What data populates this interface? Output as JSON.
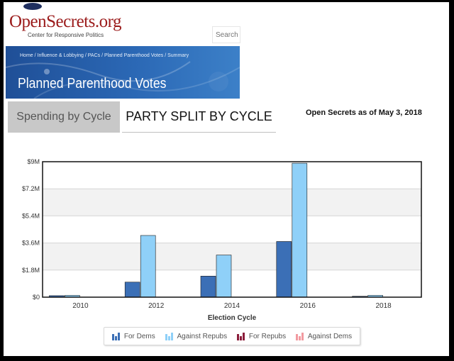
{
  "header": {
    "logo_name": "OpenSecrets.org",
    "logo_tagline": "Center for Responsive Politics",
    "search_placeholder": "Search"
  },
  "banner": {
    "breadcrumbs": [
      "Home",
      "Influence & Lobbying",
      "PACs",
      "Planned Parenthood Votes",
      "Summary"
    ],
    "title": "Planned Parenthood Votes"
  },
  "tabs": {
    "spending": "Spending by Cycle",
    "party_split": "PARTY SPLIT BY CYCLE"
  },
  "as_of": "Open Secrets as of May 3, 2018",
  "colors": {
    "for_dems": "#3b6fb6",
    "against_repubs": "#8fd0f8",
    "for_repubs": "#8b1c3a",
    "against_dems": "#f29aa0"
  },
  "chart_data": {
    "type": "bar",
    "categories": [
      "2010",
      "2012",
      "2014",
      "2016",
      "2018"
    ],
    "series": [
      {
        "name": "For Dems",
        "values": [
          0.1,
          1.0,
          1.4,
          3.7,
          0.06
        ]
      },
      {
        "name": "Against Repubs",
        "values": [
          0.12,
          4.1,
          2.8,
          8.9,
          0.12
        ]
      },
      {
        "name": "For Repubs",
        "values": [
          0.0,
          0.0,
          0.0,
          0.0,
          0.0
        ]
      },
      {
        "name": "Against Dems",
        "values": [
          0.0,
          0.0,
          0.0,
          0.0,
          0.0
        ]
      }
    ],
    "y_ticks": [
      "$0",
      "$1.8M",
      "$3.6M",
      "$5.4M",
      "$7.2M",
      "$9M"
    ],
    "ylim": [
      0,
      9
    ],
    "y_unit": "millions of dollars",
    "xlabel": "Election Cycle",
    "ylabel": "",
    "grid": true,
    "legend_position": "bottom"
  }
}
